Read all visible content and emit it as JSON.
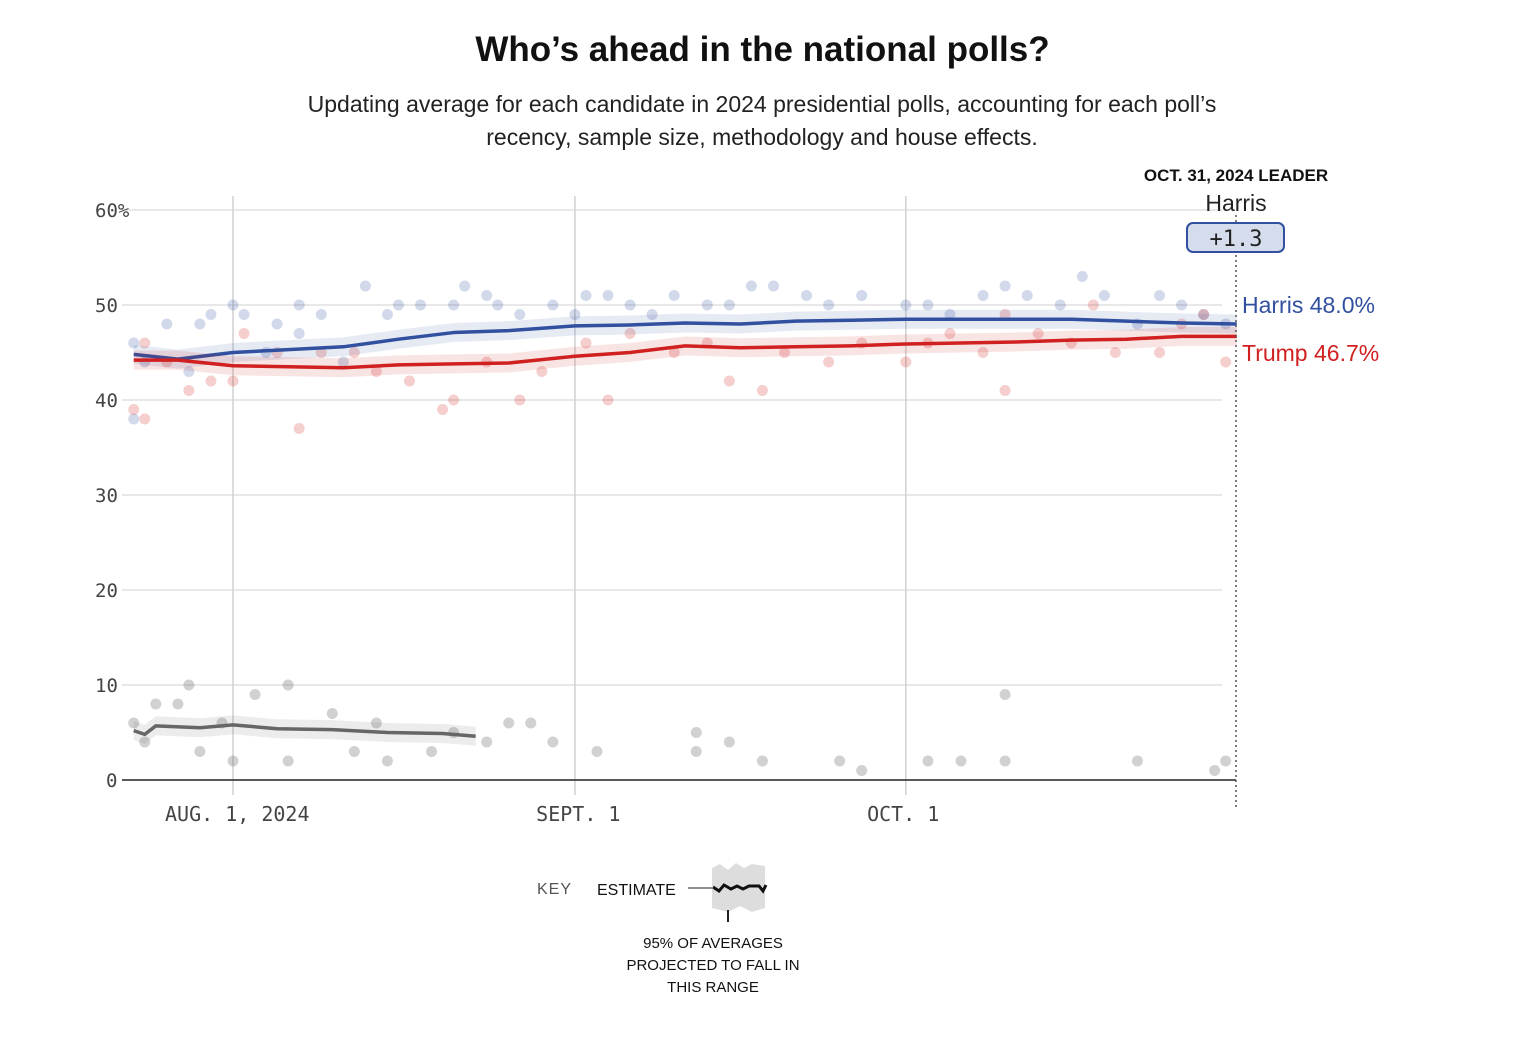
{
  "title": "Who’s ahead in the national polls?",
  "subtitle": "Updating average for each candidate in 2024 presidential polls, accounting for each poll’s recency, sample size, methodology and house effects.",
  "leader": {
    "date_label": "OCT. 31, 2024 LEADER",
    "name": "Harris",
    "margin": "+1.3"
  },
  "labels": {
    "harris": "Harris 48.0%",
    "trump": "Trump 46.7%"
  },
  "key": {
    "label": "KEY",
    "estimate": "ESTIMATE",
    "range_note_1": "95% OF AVERAGES",
    "range_note_2": "PROJECTED TO FALL IN",
    "range_note_3": "THIS RANGE"
  },
  "colors": {
    "harris": "#3150a0",
    "trump": "#d02020",
    "other": "#666666",
    "grid": "#d0d0d0"
  },
  "chart_data": {
    "type": "line",
    "title": "Who’s ahead in the national polls?",
    "ylim": [
      0,
      60
    ],
    "yticks": [
      "0",
      "10",
      "20",
      "30",
      "40",
      "50",
      "60%"
    ],
    "ytick_values": [
      0,
      10,
      20,
      30,
      40,
      50,
      60
    ],
    "xlim": [
      "2024-07-22",
      "2024-10-31"
    ],
    "xticks": [
      {
        "date": "2024-08-01",
        "label": "AUG. 1, 2024"
      },
      {
        "date": "2024-09-01",
        "label": "SEPT. 1"
      },
      {
        "date": "2024-10-01",
        "label": "OCT. 1"
      }
    ],
    "grid": true,
    "series": [
      {
        "name": "Harris",
        "key": "harris",
        "trend": [
          [
            "2024-07-23",
            44.8
          ],
          [
            "2024-07-27",
            44.3
          ],
          [
            "2024-08-01",
            45.0
          ],
          [
            "2024-08-06",
            45.3
          ],
          [
            "2024-08-11",
            45.6
          ],
          [
            "2024-08-16",
            46.4
          ],
          [
            "2024-08-21",
            47.1
          ],
          [
            "2024-08-26",
            47.3
          ],
          [
            "2024-09-01",
            47.8
          ],
          [
            "2024-09-06",
            47.9
          ],
          [
            "2024-09-11",
            48.1
          ],
          [
            "2024-09-16",
            48.0
          ],
          [
            "2024-09-21",
            48.3
          ],
          [
            "2024-09-26",
            48.4
          ],
          [
            "2024-10-01",
            48.5
          ],
          [
            "2024-10-06",
            48.5
          ],
          [
            "2024-10-11",
            48.5
          ],
          [
            "2024-10-16",
            48.5
          ],
          [
            "2024-10-21",
            48.3
          ],
          [
            "2024-10-26",
            48.1
          ],
          [
            "2024-10-31",
            48.0
          ]
        ],
        "polls": [
          [
            "2024-07-23",
            46
          ],
          [
            "2024-07-23",
            38
          ],
          [
            "2024-07-24",
            44
          ],
          [
            "2024-07-26",
            48
          ],
          [
            "2024-07-28",
            43
          ],
          [
            "2024-07-29",
            48
          ],
          [
            "2024-07-30",
            49
          ],
          [
            "2024-08-01",
            50
          ],
          [
            "2024-08-02",
            49
          ],
          [
            "2024-08-04",
            45
          ],
          [
            "2024-08-05",
            48
          ],
          [
            "2024-08-07",
            47
          ],
          [
            "2024-08-07",
            50
          ],
          [
            "2024-08-09",
            49
          ],
          [
            "2024-08-11",
            44
          ],
          [
            "2024-08-13",
            52
          ],
          [
            "2024-08-15",
            49
          ],
          [
            "2024-08-16",
            50
          ],
          [
            "2024-08-18",
            50
          ],
          [
            "2024-08-21",
            50
          ],
          [
            "2024-08-22",
            52
          ],
          [
            "2024-08-24",
            51
          ],
          [
            "2024-08-25",
            50
          ],
          [
            "2024-08-27",
            49
          ],
          [
            "2024-08-30",
            50
          ],
          [
            "2024-09-01",
            49
          ],
          [
            "2024-09-02",
            51
          ],
          [
            "2024-09-04",
            51
          ],
          [
            "2024-09-06",
            50
          ],
          [
            "2024-09-08",
            49
          ],
          [
            "2024-09-10",
            51
          ],
          [
            "2024-09-13",
            50
          ],
          [
            "2024-09-15",
            50
          ],
          [
            "2024-09-17",
            52
          ],
          [
            "2024-09-19",
            52
          ],
          [
            "2024-09-22",
            51
          ],
          [
            "2024-09-24",
            50
          ],
          [
            "2024-09-27",
            51
          ],
          [
            "2024-10-01",
            50
          ],
          [
            "2024-10-03",
            50
          ],
          [
            "2024-10-05",
            49
          ],
          [
            "2024-10-08",
            51
          ],
          [
            "2024-10-10",
            52
          ],
          [
            "2024-10-12",
            51
          ],
          [
            "2024-10-15",
            50
          ],
          [
            "2024-10-17",
            53
          ],
          [
            "2024-10-19",
            51
          ],
          [
            "2024-10-22",
            48
          ],
          [
            "2024-10-24",
            51
          ],
          [
            "2024-10-26",
            50
          ],
          [
            "2024-10-28",
            49
          ],
          [
            "2024-10-30",
            48
          ]
        ]
      },
      {
        "name": "Trump",
        "key": "trump",
        "trend": [
          [
            "2024-07-23",
            44.2
          ],
          [
            "2024-07-27",
            44.2
          ],
          [
            "2024-08-01",
            43.6
          ],
          [
            "2024-08-06",
            43.5
          ],
          [
            "2024-08-11",
            43.4
          ],
          [
            "2024-08-16",
            43.7
          ],
          [
            "2024-08-21",
            43.8
          ],
          [
            "2024-08-26",
            43.9
          ],
          [
            "2024-09-01",
            44.6
          ],
          [
            "2024-09-06",
            45.0
          ],
          [
            "2024-09-11",
            45.7
          ],
          [
            "2024-09-16",
            45.5
          ],
          [
            "2024-09-21",
            45.6
          ],
          [
            "2024-09-26",
            45.7
          ],
          [
            "2024-10-01",
            45.9
          ],
          [
            "2024-10-06",
            46.0
          ],
          [
            "2024-10-11",
            46.1
          ],
          [
            "2024-10-16",
            46.3
          ],
          [
            "2024-10-21",
            46.4
          ],
          [
            "2024-10-26",
            46.7
          ],
          [
            "2024-10-31",
            46.7
          ]
        ],
        "polls": [
          [
            "2024-07-23",
            39
          ],
          [
            "2024-07-24",
            38
          ],
          [
            "2024-07-24",
            46
          ],
          [
            "2024-07-26",
            44
          ],
          [
            "2024-07-28",
            41
          ],
          [
            "2024-07-30",
            42
          ],
          [
            "2024-08-01",
            42
          ],
          [
            "2024-08-02",
            47
          ],
          [
            "2024-08-05",
            45
          ],
          [
            "2024-08-07",
            37
          ],
          [
            "2024-08-09",
            45
          ],
          [
            "2024-08-12",
            45
          ],
          [
            "2024-08-14",
            43
          ],
          [
            "2024-08-17",
            42
          ],
          [
            "2024-08-20",
            39
          ],
          [
            "2024-08-21",
            40
          ],
          [
            "2024-08-24",
            44
          ],
          [
            "2024-08-27",
            40
          ],
          [
            "2024-08-29",
            43
          ],
          [
            "2024-09-02",
            46
          ],
          [
            "2024-09-04",
            40
          ],
          [
            "2024-09-06",
            47
          ],
          [
            "2024-09-10",
            45
          ],
          [
            "2024-09-13",
            46
          ],
          [
            "2024-09-15",
            42
          ],
          [
            "2024-09-18",
            41
          ],
          [
            "2024-09-20",
            45
          ],
          [
            "2024-09-24",
            44
          ],
          [
            "2024-09-27",
            46
          ],
          [
            "2024-10-01",
            44
          ],
          [
            "2024-10-03",
            46
          ],
          [
            "2024-10-05",
            47
          ],
          [
            "2024-10-08",
            45
          ],
          [
            "2024-10-10",
            49
          ],
          [
            "2024-10-10",
            41
          ],
          [
            "2024-10-13",
            47
          ],
          [
            "2024-10-16",
            46
          ],
          [
            "2024-10-18",
            50
          ],
          [
            "2024-10-20",
            45
          ],
          [
            "2024-10-24",
            45
          ],
          [
            "2024-10-26",
            48
          ],
          [
            "2024-10-28",
            49
          ],
          [
            "2024-10-30",
            44
          ]
        ]
      },
      {
        "name": "Other",
        "key": "other",
        "trend": [
          [
            "2024-07-23",
            5.2
          ],
          [
            "2024-07-24",
            4.8
          ],
          [
            "2024-07-25",
            5.7
          ],
          [
            "2024-07-29",
            5.5
          ],
          [
            "2024-08-01",
            5.8
          ],
          [
            "2024-08-05",
            5.4
          ],
          [
            "2024-08-10",
            5.3
          ],
          [
            "2024-08-15",
            5.0
          ],
          [
            "2024-08-20",
            4.9
          ],
          [
            "2024-08-23",
            4.6
          ]
        ],
        "polls": [
          [
            "2024-07-23",
            6
          ],
          [
            "2024-07-24",
            4
          ],
          [
            "2024-07-25",
            8
          ],
          [
            "2024-07-27",
            8
          ],
          [
            "2024-07-28",
            10
          ],
          [
            "2024-07-29",
            3
          ],
          [
            "2024-07-31",
            6
          ],
          [
            "2024-08-01",
            2
          ],
          [
            "2024-08-03",
            9
          ],
          [
            "2024-08-06",
            10
          ],
          [
            "2024-08-06",
            2
          ],
          [
            "2024-08-10",
            7
          ],
          [
            "2024-08-12",
            3
          ],
          [
            "2024-08-14",
            6
          ],
          [
            "2024-08-15",
            2
          ],
          [
            "2024-08-19",
            3
          ],
          [
            "2024-08-21",
            5
          ],
          [
            "2024-08-24",
            4
          ],
          [
            "2024-08-26",
            6
          ],
          [
            "2024-08-28",
            6
          ],
          [
            "2024-08-30",
            4
          ],
          [
            "2024-09-03",
            3
          ],
          [
            "2024-09-12",
            3
          ],
          [
            "2024-09-12",
            5
          ],
          [
            "2024-09-15",
            4
          ],
          [
            "2024-09-18",
            2
          ],
          [
            "2024-09-25",
            2
          ],
          [
            "2024-09-27",
            1
          ],
          [
            "2024-10-03",
            2
          ],
          [
            "2024-10-06",
            2
          ],
          [
            "2024-10-10",
            9
          ],
          [
            "2024-10-10",
            2
          ],
          [
            "2024-10-22",
            2
          ],
          [
            "2024-10-29",
            1
          ],
          [
            "2024-10-30",
            2
          ]
        ]
      }
    ]
  }
}
